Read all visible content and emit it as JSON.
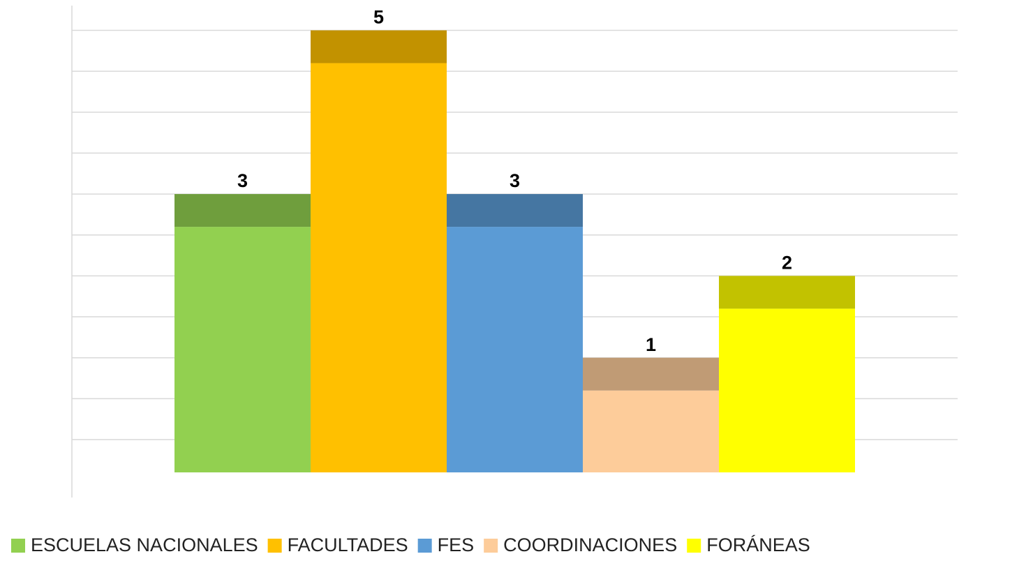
{
  "chart_data": {
    "type": "bar",
    "series": [
      {
        "name": "ESCUELAS NACIONALES",
        "color": "#92d050",
        "values": [
          3
        ]
      },
      {
        "name": "FACULTADES",
        "color": "#ffc000",
        "values": [
          5
        ]
      },
      {
        "name": "FES",
        "color": "#5b9bd5",
        "values": [
          3
        ]
      },
      {
        "name": "COORDINACIONES",
        "color": "#fdcc9a",
        "values": [
          1
        ]
      },
      {
        "name": "FORÁNEAS",
        "color": "#ffff00",
        "values": [
          2
        ]
      }
    ],
    "ylim": [
      0,
      5.75
    ],
    "yticks": [
      0,
      0.5,
      1,
      1.5,
      2,
      2.5,
      3,
      3.5,
      4,
      4.5,
      5,
      5.5
    ],
    "grid": true
  }
}
